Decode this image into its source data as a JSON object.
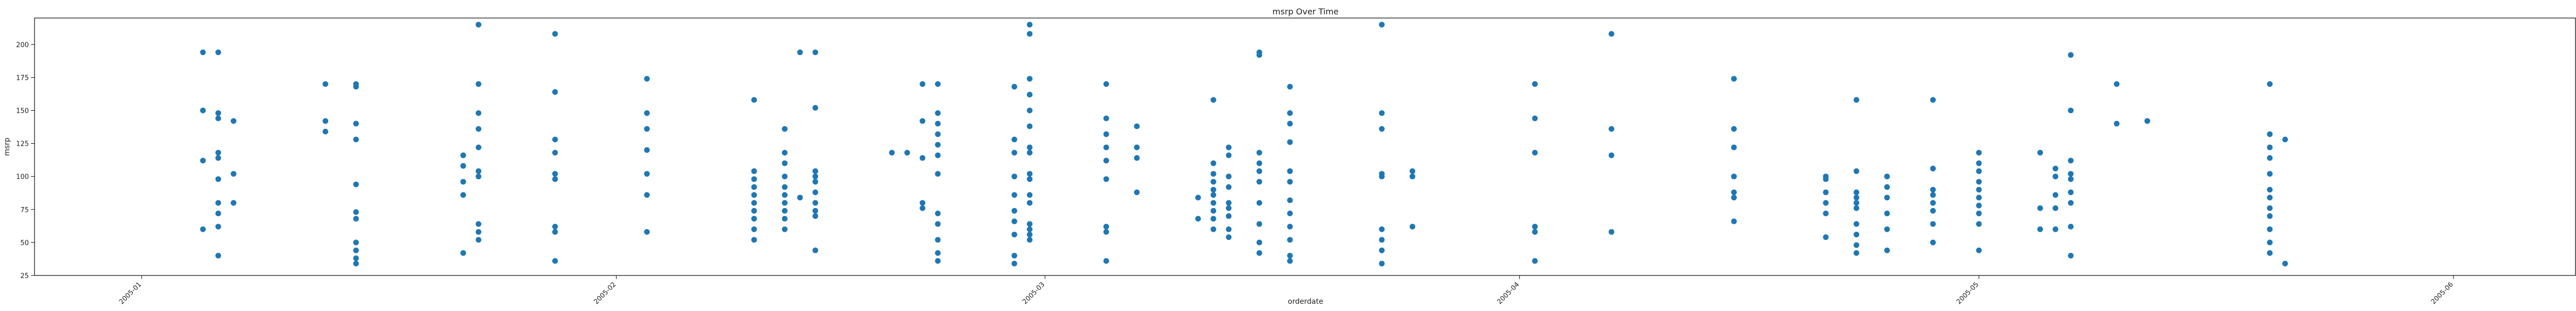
{
  "chart_data": {
    "type": "scatter",
    "title": "msrp Over Time",
    "xlabel": "orderdate",
    "ylabel": "msrp",
    "xlim": [
      "2004-12-25",
      "2005-06-09"
    ],
    "ylim": [
      25,
      220
    ],
    "x_ticks": [
      "2005-01",
      "2005-02",
      "2005-03",
      "2005-04",
      "2005-05",
      "2005-06"
    ],
    "y_ticks": [
      25,
      50,
      75,
      100,
      125,
      150,
      175,
      200
    ],
    "grid": false,
    "marker_color": "#1f77b4",
    "points": [
      {
        "x": "2005-01-05",
        "y": 194
      },
      {
        "x": "2005-01-05",
        "y": 150
      },
      {
        "x": "2005-01-05",
        "y": 112
      },
      {
        "x": "2005-01-05",
        "y": 60
      },
      {
        "x": "2005-01-06",
        "y": 194
      },
      {
        "x": "2005-01-06",
        "y": 148
      },
      {
        "x": "2005-01-06",
        "y": 144
      },
      {
        "x": "2005-01-06",
        "y": 118
      },
      {
        "x": "2005-01-06",
        "y": 114
      },
      {
        "x": "2005-01-06",
        "y": 98
      },
      {
        "x": "2005-01-06",
        "y": 80
      },
      {
        "x": "2005-01-06",
        "y": 72
      },
      {
        "x": "2005-01-06",
        "y": 62
      },
      {
        "x": "2005-01-06",
        "y": 40
      },
      {
        "x": "2005-01-07",
        "y": 142
      },
      {
        "x": "2005-01-07",
        "y": 102
      },
      {
        "x": "2005-01-07",
        "y": 80
      },
      {
        "x": "2005-01-13",
        "y": 170
      },
      {
        "x": "2005-01-13",
        "y": 142
      },
      {
        "x": "2005-01-13",
        "y": 134
      },
      {
        "x": "2005-01-15",
        "y": 170
      },
      {
        "x": "2005-01-15",
        "y": 168
      },
      {
        "x": "2005-01-15",
        "y": 140
      },
      {
        "x": "2005-01-15",
        "y": 128
      },
      {
        "x": "2005-01-15",
        "y": 94
      },
      {
        "x": "2005-01-15",
        "y": 73
      },
      {
        "x": "2005-01-15",
        "y": 68
      },
      {
        "x": "2005-01-15",
        "y": 50
      },
      {
        "x": "2005-01-15",
        "y": 44
      },
      {
        "x": "2005-01-15",
        "y": 38
      },
      {
        "x": "2005-01-15",
        "y": 34
      },
      {
        "x": "2005-01-22",
        "y": 116
      },
      {
        "x": "2005-01-22",
        "y": 108
      },
      {
        "x": "2005-01-22",
        "y": 96
      },
      {
        "x": "2005-01-22",
        "y": 86
      },
      {
        "x": "2005-01-22",
        "y": 42
      },
      {
        "x": "2005-01-23",
        "y": 215
      },
      {
        "x": "2005-01-23",
        "y": 170
      },
      {
        "x": "2005-01-23",
        "y": 148
      },
      {
        "x": "2005-01-23",
        "y": 136
      },
      {
        "x": "2005-01-23",
        "y": 122
      },
      {
        "x": "2005-01-23",
        "y": 104
      },
      {
        "x": "2005-01-23",
        "y": 100
      },
      {
        "x": "2005-01-23",
        "y": 64
      },
      {
        "x": "2005-01-23",
        "y": 58
      },
      {
        "x": "2005-01-23",
        "y": 52
      },
      {
        "x": "2005-01-28",
        "y": 208
      },
      {
        "x": "2005-01-28",
        "y": 164
      },
      {
        "x": "2005-01-28",
        "y": 128
      },
      {
        "x": "2005-01-28",
        "y": 118
      },
      {
        "x": "2005-01-28",
        "y": 102
      },
      {
        "x": "2005-01-28",
        "y": 98
      },
      {
        "x": "2005-01-28",
        "y": 62
      },
      {
        "x": "2005-01-28",
        "y": 58
      },
      {
        "x": "2005-01-28",
        "y": 36
      },
      {
        "x": "2005-02-03",
        "y": 174
      },
      {
        "x": "2005-02-03",
        "y": 148
      },
      {
        "x": "2005-02-03",
        "y": 136
      },
      {
        "x": "2005-02-03",
        "y": 120
      },
      {
        "x": "2005-02-03",
        "y": 102
      },
      {
        "x": "2005-02-03",
        "y": 86
      },
      {
        "x": "2005-02-03",
        "y": 58
      },
      {
        "x": "2005-02-10",
        "y": 158
      },
      {
        "x": "2005-02-10",
        "y": 104
      },
      {
        "x": "2005-02-10",
        "y": 98
      },
      {
        "x": "2005-02-10",
        "y": 92
      },
      {
        "x": "2005-02-10",
        "y": 86
      },
      {
        "x": "2005-02-10",
        "y": 80
      },
      {
        "x": "2005-02-10",
        "y": 74
      },
      {
        "x": "2005-02-10",
        "y": 68
      },
      {
        "x": "2005-02-10",
        "y": 60
      },
      {
        "x": "2005-02-10",
        "y": 52
      },
      {
        "x": "2005-02-12",
        "y": 136
      },
      {
        "x": "2005-02-12",
        "y": 118
      },
      {
        "x": "2005-02-12",
        "y": 110
      },
      {
        "x": "2005-02-12",
        "y": 100
      },
      {
        "x": "2005-02-12",
        "y": 92
      },
      {
        "x": "2005-02-12",
        "y": 86
      },
      {
        "x": "2005-02-12",
        "y": 80
      },
      {
        "x": "2005-02-12",
        "y": 74
      },
      {
        "x": "2005-02-12",
        "y": 68
      },
      {
        "x": "2005-02-12",
        "y": 60
      },
      {
        "x": "2005-02-13",
        "y": 194
      },
      {
        "x": "2005-02-13",
        "y": 84
      },
      {
        "x": "2005-02-14",
        "y": 194
      },
      {
        "x": "2005-02-14",
        "y": 152
      },
      {
        "x": "2005-02-14",
        "y": 104
      },
      {
        "x": "2005-02-14",
        "y": 100
      },
      {
        "x": "2005-02-14",
        "y": 96
      },
      {
        "x": "2005-02-14",
        "y": 88
      },
      {
        "x": "2005-02-14",
        "y": 80
      },
      {
        "x": "2005-02-14",
        "y": 74
      },
      {
        "x": "2005-02-14",
        "y": 70
      },
      {
        "x": "2005-02-14",
        "y": 44
      },
      {
        "x": "2005-02-19",
        "y": 118
      },
      {
        "x": "2005-02-20",
        "y": 118
      },
      {
        "x": "2005-02-21",
        "y": 170
      },
      {
        "x": "2005-02-21",
        "y": 142
      },
      {
        "x": "2005-02-21",
        "y": 114
      },
      {
        "x": "2005-02-21",
        "y": 80
      },
      {
        "x": "2005-02-21",
        "y": 76
      },
      {
        "x": "2005-02-22",
        "y": 170
      },
      {
        "x": "2005-02-22",
        "y": 148
      },
      {
        "x": "2005-02-22",
        "y": 140
      },
      {
        "x": "2005-02-22",
        "y": 132
      },
      {
        "x": "2005-02-22",
        "y": 124
      },
      {
        "x": "2005-02-22",
        "y": 116
      },
      {
        "x": "2005-02-22",
        "y": 102
      },
      {
        "x": "2005-02-22",
        "y": 72
      },
      {
        "x": "2005-02-22",
        "y": 64
      },
      {
        "x": "2005-02-22",
        "y": 52
      },
      {
        "x": "2005-02-22",
        "y": 42
      },
      {
        "x": "2005-02-22",
        "y": 36
      },
      {
        "x": "2005-02-27",
        "y": 168
      },
      {
        "x": "2005-02-27",
        "y": 128
      },
      {
        "x": "2005-02-27",
        "y": 118
      },
      {
        "x": "2005-02-27",
        "y": 100
      },
      {
        "x": "2005-02-27",
        "y": 86
      },
      {
        "x": "2005-02-27",
        "y": 74
      },
      {
        "x": "2005-02-27",
        "y": 66
      },
      {
        "x": "2005-02-27",
        "y": 56
      },
      {
        "x": "2005-02-27",
        "y": 34
      },
      {
        "x": "2005-02-27",
        "y": 40
      },
      {
        "x": "2005-02-28",
        "y": 215
      },
      {
        "x": "2005-02-28",
        "y": 208
      },
      {
        "x": "2005-02-28",
        "y": 174
      },
      {
        "x": "2005-02-28",
        "y": 162
      },
      {
        "x": "2005-02-28",
        "y": 150
      },
      {
        "x": "2005-02-28",
        "y": 138
      },
      {
        "x": "2005-02-28",
        "y": 122
      },
      {
        "x": "2005-02-28",
        "y": 118
      },
      {
        "x": "2005-02-28",
        "y": 102
      },
      {
        "x": "2005-02-28",
        "y": 98
      },
      {
        "x": "2005-02-28",
        "y": 86
      },
      {
        "x": "2005-02-28",
        "y": 80
      },
      {
        "x": "2005-02-28",
        "y": 64
      },
      {
        "x": "2005-02-28",
        "y": 60
      },
      {
        "x": "2005-02-28",
        "y": 56
      },
      {
        "x": "2005-02-28",
        "y": 52
      },
      {
        "x": "2005-03-05",
        "y": 170
      },
      {
        "x": "2005-03-05",
        "y": 144
      },
      {
        "x": "2005-03-05",
        "y": 132
      },
      {
        "x": "2005-03-05",
        "y": 122
      },
      {
        "x": "2005-03-05",
        "y": 112
      },
      {
        "x": "2005-03-05",
        "y": 98
      },
      {
        "x": "2005-03-05",
        "y": 62
      },
      {
        "x": "2005-03-05",
        "y": 58
      },
      {
        "x": "2005-03-05",
        "y": 36
      },
      {
        "x": "2005-03-07",
        "y": 138
      },
      {
        "x": "2005-03-07",
        "y": 122
      },
      {
        "x": "2005-03-07",
        "y": 114
      },
      {
        "x": "2005-03-07",
        "y": 88
      },
      {
        "x": "2005-03-11",
        "y": 84
      },
      {
        "x": "2005-03-11",
        "y": 68
      },
      {
        "x": "2005-03-12",
        "y": 158
      },
      {
        "x": "2005-03-12",
        "y": 110
      },
      {
        "x": "2005-03-12",
        "y": 102
      },
      {
        "x": "2005-03-12",
        "y": 96
      },
      {
        "x": "2005-03-12",
        "y": 90
      },
      {
        "x": "2005-03-12",
        "y": 86
      },
      {
        "x": "2005-03-12",
        "y": 80
      },
      {
        "x": "2005-03-12",
        "y": 74
      },
      {
        "x": "2005-03-12",
        "y": 68
      },
      {
        "x": "2005-03-12",
        "y": 60
      },
      {
        "x": "2005-03-13",
        "y": 122
      },
      {
        "x": "2005-03-13",
        "y": 116
      },
      {
        "x": "2005-03-13",
        "y": 100
      },
      {
        "x": "2005-03-13",
        "y": 92
      },
      {
        "x": "2005-03-13",
        "y": 80
      },
      {
        "x": "2005-03-13",
        "y": 76
      },
      {
        "x": "2005-03-13",
        "y": 70
      },
      {
        "x": "2005-03-13",
        "y": 60
      },
      {
        "x": "2005-03-13",
        "y": 54
      },
      {
        "x": "2005-03-15",
        "y": 194
      },
      {
        "x": "2005-03-15",
        "y": 192
      },
      {
        "x": "2005-03-15",
        "y": 118
      },
      {
        "x": "2005-03-15",
        "y": 110
      },
      {
        "x": "2005-03-15",
        "y": 104
      },
      {
        "x": "2005-03-15",
        "y": 96
      },
      {
        "x": "2005-03-15",
        "y": 80
      },
      {
        "x": "2005-03-15",
        "y": 64
      },
      {
        "x": "2005-03-15",
        "y": 50
      },
      {
        "x": "2005-03-15",
        "y": 42
      },
      {
        "x": "2005-03-17",
        "y": 168
      },
      {
        "x": "2005-03-17",
        "y": 148
      },
      {
        "x": "2005-03-17",
        "y": 140
      },
      {
        "x": "2005-03-17",
        "y": 126
      },
      {
        "x": "2005-03-17",
        "y": 104
      },
      {
        "x": "2005-03-17",
        "y": 96
      },
      {
        "x": "2005-03-17",
        "y": 82
      },
      {
        "x": "2005-03-17",
        "y": 72
      },
      {
        "x": "2005-03-17",
        "y": 62
      },
      {
        "x": "2005-03-17",
        "y": 52
      },
      {
        "x": "2005-03-17",
        "y": 40
      },
      {
        "x": "2005-03-17",
        "y": 36
      },
      {
        "x": "2005-03-23",
        "y": 215
      },
      {
        "x": "2005-03-23",
        "y": 148
      },
      {
        "x": "2005-03-23",
        "y": 136
      },
      {
        "x": "2005-03-23",
        "y": 102
      },
      {
        "x": "2005-03-23",
        "y": 100
      },
      {
        "x": "2005-03-23",
        "y": 60
      },
      {
        "x": "2005-03-23",
        "y": 52
      },
      {
        "x": "2005-03-23",
        "y": 44
      },
      {
        "x": "2005-03-23",
        "y": 34
      },
      {
        "x": "2005-03-25",
        "y": 104
      },
      {
        "x": "2005-03-25",
        "y": 100
      },
      {
        "x": "2005-03-25",
        "y": 62
      },
      {
        "x": "2005-04-02",
        "y": 170
      },
      {
        "x": "2005-04-02",
        "y": 144
      },
      {
        "x": "2005-04-02",
        "y": 118
      },
      {
        "x": "2005-04-02",
        "y": 62
      },
      {
        "x": "2005-04-02",
        "y": 58
      },
      {
        "x": "2005-04-02",
        "y": 36
      },
      {
        "x": "2005-04-07",
        "y": 208
      },
      {
        "x": "2005-04-07",
        "y": 136
      },
      {
        "x": "2005-04-07",
        "y": 116
      },
      {
        "x": "2005-04-07",
        "y": 58
      },
      {
        "x": "2005-04-15",
        "y": 174
      },
      {
        "x": "2005-04-15",
        "y": 136
      },
      {
        "x": "2005-04-15",
        "y": 122
      },
      {
        "x": "2005-04-15",
        "y": 100
      },
      {
        "x": "2005-04-15",
        "y": 88
      },
      {
        "x": "2005-04-15",
        "y": 84
      },
      {
        "x": "2005-04-15",
        "y": 66
      },
      {
        "x": "2005-04-21",
        "y": 100
      },
      {
        "x": "2005-04-21",
        "y": 98
      },
      {
        "x": "2005-04-21",
        "y": 88
      },
      {
        "x": "2005-04-21",
        "y": 80
      },
      {
        "x": "2005-04-21",
        "y": 72
      },
      {
        "x": "2005-04-21",
        "y": 54
      },
      {
        "x": "2005-04-23",
        "y": 158
      },
      {
        "x": "2005-04-23",
        "y": 104
      },
      {
        "x": "2005-04-23",
        "y": 88
      },
      {
        "x": "2005-04-23",
        "y": 84
      },
      {
        "x": "2005-04-23",
        "y": 80
      },
      {
        "x": "2005-04-23",
        "y": 76
      },
      {
        "x": "2005-04-23",
        "y": 64
      },
      {
        "x": "2005-04-23",
        "y": 56
      },
      {
        "x": "2005-04-23",
        "y": 48
      },
      {
        "x": "2005-04-23",
        "y": 42
      },
      {
        "x": "2005-04-25",
        "y": 100
      },
      {
        "x": "2005-04-25",
        "y": 92
      },
      {
        "x": "2005-04-25",
        "y": 84
      },
      {
        "x": "2005-04-25",
        "y": 72
      },
      {
        "x": "2005-04-25",
        "y": 60
      },
      {
        "x": "2005-04-25",
        "y": 44
      },
      {
        "x": "2005-04-28",
        "y": 158
      },
      {
        "x": "2005-04-28",
        "y": 106
      },
      {
        "x": "2005-04-28",
        "y": 90
      },
      {
        "x": "2005-04-28",
        "y": 86
      },
      {
        "x": "2005-04-28",
        "y": 80
      },
      {
        "x": "2005-04-28",
        "y": 74
      },
      {
        "x": "2005-04-28",
        "y": 64
      },
      {
        "x": "2005-04-28",
        "y": 50
      },
      {
        "x": "2005-05-01",
        "y": 118
      },
      {
        "x": "2005-05-01",
        "y": 110
      },
      {
        "x": "2005-05-01",
        "y": 104
      },
      {
        "x": "2005-05-01",
        "y": 96
      },
      {
        "x": "2005-05-01",
        "y": 90
      },
      {
        "x": "2005-05-01",
        "y": 84
      },
      {
        "x": "2005-05-01",
        "y": 78
      },
      {
        "x": "2005-05-01",
        "y": 72
      },
      {
        "x": "2005-05-01",
        "y": 64
      },
      {
        "x": "2005-05-01",
        "y": 44
      },
      {
        "x": "2005-05-05",
        "y": 118
      },
      {
        "x": "2005-05-05",
        "y": 76
      },
      {
        "x": "2005-05-05",
        "y": 60
      },
      {
        "x": "2005-05-06",
        "y": 106
      },
      {
        "x": "2005-05-06",
        "y": 100
      },
      {
        "x": "2005-05-06",
        "y": 86
      },
      {
        "x": "2005-05-06",
        "y": 76
      },
      {
        "x": "2005-05-06",
        "y": 60
      },
      {
        "x": "2005-05-07",
        "y": 192
      },
      {
        "x": "2005-05-07",
        "y": 150
      },
      {
        "x": "2005-05-07",
        "y": 112
      },
      {
        "x": "2005-05-07",
        "y": 102
      },
      {
        "x": "2005-05-07",
        "y": 98
      },
      {
        "x": "2005-05-07",
        "y": 88
      },
      {
        "x": "2005-05-07",
        "y": 80
      },
      {
        "x": "2005-05-07",
        "y": 62
      },
      {
        "x": "2005-05-07",
        "y": 40
      },
      {
        "x": "2005-05-10",
        "y": 170
      },
      {
        "x": "2005-05-10",
        "y": 140
      },
      {
        "x": "2005-05-12",
        "y": 142
      },
      {
        "x": "2005-05-12",
        "y": 142
      },
      {
        "x": "2005-05-20",
        "y": 170
      },
      {
        "x": "2005-05-20",
        "y": 132
      },
      {
        "x": "2005-05-20",
        "y": 122
      },
      {
        "x": "2005-05-20",
        "y": 114
      },
      {
        "x": "2005-05-20",
        "y": 102
      },
      {
        "x": "2005-05-20",
        "y": 90
      },
      {
        "x": "2005-05-20",
        "y": 84
      },
      {
        "x": "2005-05-20",
        "y": 76
      },
      {
        "x": "2005-05-20",
        "y": 70
      },
      {
        "x": "2005-05-20",
        "y": 60
      },
      {
        "x": "2005-05-20",
        "y": 50
      },
      {
        "x": "2005-05-20",
        "y": 42
      },
      {
        "x": "2005-05-21",
        "y": 128
      },
      {
        "x": "2005-05-21",
        "y": 34
      }
    ]
  }
}
